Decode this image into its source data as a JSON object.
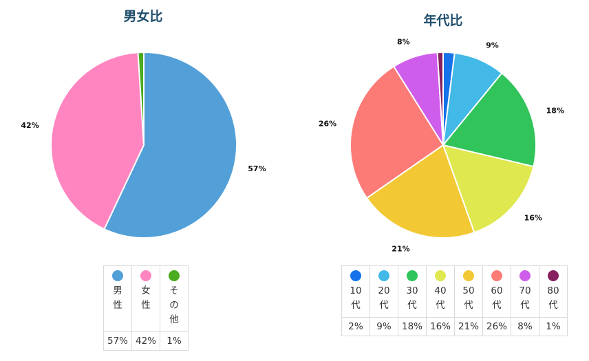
{
  "chart_data": [
    {
      "type": "pie",
      "title": "男女比",
      "slices": [
        {
          "label": "男性",
          "value": 57,
          "value_label": "57%",
          "color": "#539fd7"
        },
        {
          "label": "女性",
          "value": 42,
          "value_label": "42%",
          "color": "#ff85c0"
        },
        {
          "label": "その他",
          "value": 1,
          "value_label": "1%",
          "color": "#4aac1e"
        }
      ],
      "legend_position": "bottom"
    },
    {
      "type": "pie",
      "title": "年代比",
      "slices": [
        {
          "label": "10代",
          "value": 2,
          "value_label": "2%",
          "color": "#1572ea"
        },
        {
          "label": "20代",
          "value": 9,
          "value_label": "9%",
          "color": "#42b9e6"
        },
        {
          "label": "30代",
          "value": 18,
          "value_label": "18%",
          "color": "#31c45b"
        },
        {
          "label": "40代",
          "value": 16,
          "value_label": "16%",
          "color": "#dfe84f"
        },
        {
          "label": "50代",
          "value": 21,
          "value_label": "21%",
          "color": "#f2c935"
        },
        {
          "label": "60代",
          "value": 26,
          "value_label": "26%",
          "color": "#fc7b77"
        },
        {
          "label": "70代",
          "value": 8,
          "value_label": "8%",
          "color": "#cf5deb"
        },
        {
          "label": "80代",
          "value": 1,
          "value_label": "1%",
          "color": "#86205f"
        }
      ],
      "legend_position": "bottom"
    }
  ]
}
